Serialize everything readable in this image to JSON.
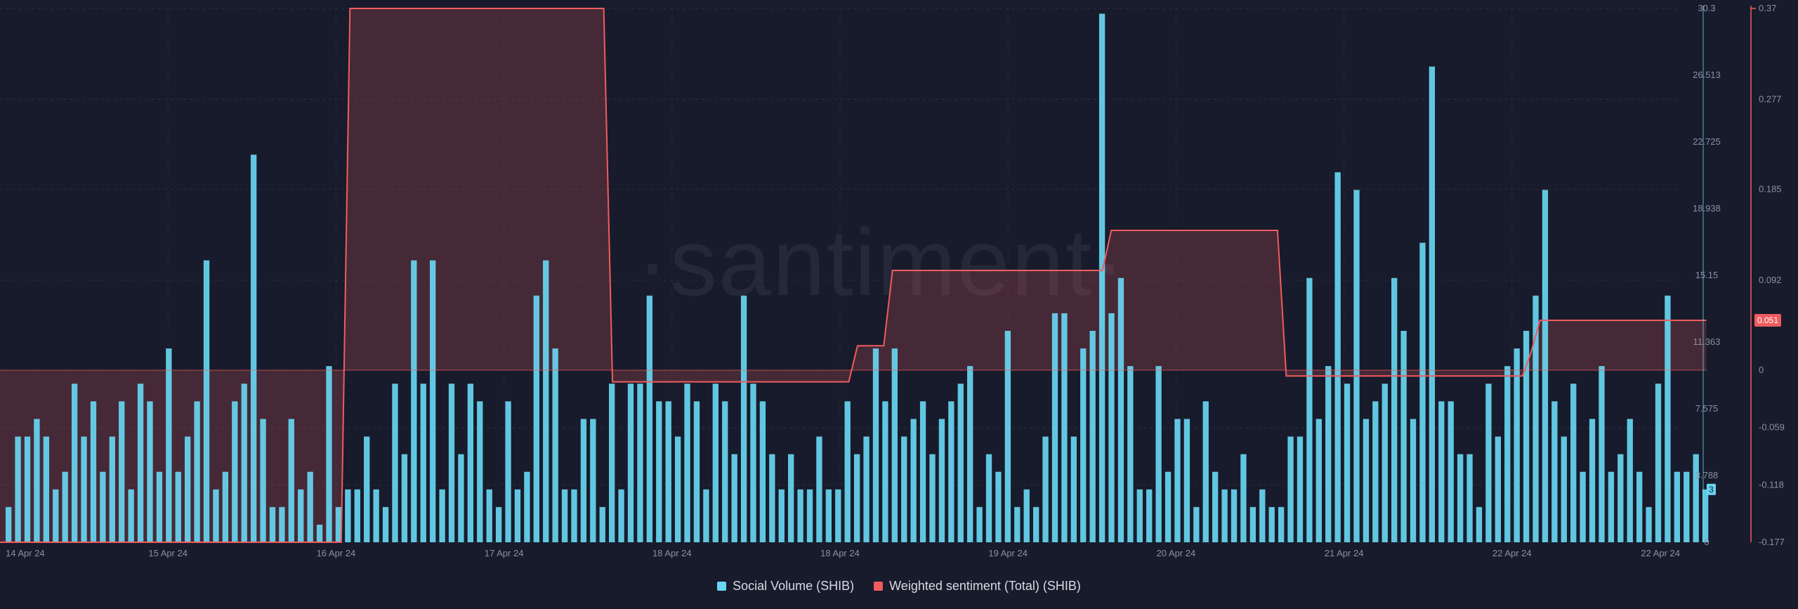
{
  "colors": {
    "background": "#181b2b",
    "volume": "#68d6f1",
    "sentiment": "#ef5c5f",
    "grid": "#2a2e3f",
    "axis_text": "#8b90a3",
    "watermark": "#252838"
  },
  "watermark": "·santiment·",
  "chart_data": {
    "type": "bar",
    "title": "",
    "x_range": [
      "14 Apr 24",
      "22 Apr 24"
    ],
    "x_ticks": [
      "14 Apr 24",
      "15 Apr 24",
      "16 Apr 24",
      "17 Apr 24",
      "18 Apr 24",
      "18 Apr 24",
      "19 Apr 24",
      "20 Apr 24",
      "21 Apr 24",
      "22 Apr 24",
      "22 Apr 24"
    ],
    "y_left": {
      "ticks": [
        "0",
        "3.788",
        "7.575",
        "11.363",
        "15.15",
        "18.938",
        "22.725",
        "26.513",
        "30.3"
      ],
      "range": [
        0,
        30.3
      ]
    },
    "y_right": {
      "ticks": [
        "-0.177",
        "-0.118",
        "-0.059",
        "0",
        "0.092",
        "0.185",
        "0.277",
        "0.37"
      ],
      "range": [
        -0.177,
        0.37
      ],
      "note": "non-uniform scale: 0 is the pivot; negatives and positives are scaled separately"
    },
    "grid": true,
    "legend_position": "bottom-center",
    "series": [
      {
        "name": "Social Volume (SHIB)",
        "type": "bar",
        "axis": "left",
        "color": "#68d6f1",
        "last_value_badge": "3",
        "values": [
          2,
          6,
          6,
          7,
          6,
          3,
          4,
          9,
          6,
          8,
          4,
          6,
          8,
          3,
          9,
          8,
          4,
          11,
          4,
          6,
          8,
          16,
          3,
          4,
          8,
          9,
          22,
          7,
          2,
          2,
          7,
          3,
          4,
          1,
          10,
          2,
          3,
          3,
          6,
          3,
          2,
          9,
          5,
          16,
          9,
          16,
          3,
          9,
          5,
          9,
          8,
          3,
          2,
          8,
          3,
          4,
          14,
          16,
          11,
          3,
          3,
          7,
          7,
          2,
          9,
          3,
          9,
          9,
          14,
          8,
          8,
          6,
          9,
          8,
          3,
          9,
          8,
          5,
          14,
          9,
          8,
          5,
          3,
          5,
          3,
          3,
          6,
          3,
          3,
          8,
          5,
          6,
          11,
          8,
          11,
          6,
          7,
          8,
          5,
          7,
          8,
          9,
          10,
          2,
          5,
          4,
          12,
          2,
          3,
          2,
          6,
          13,
          13,
          6,
          11,
          12,
          30,
          13,
          15,
          10,
          3,
          3,
          10,
          4,
          7,
          7,
          2,
          8,
          4,
          3,
          3,
          5,
          2,
          3,
          2,
          2,
          6,
          6,
          15,
          7,
          10,
          21,
          9,
          20,
          7,
          8,
          9,
          15,
          12,
          7,
          17,
          27,
          8,
          8,
          5,
          5,
          2,
          9,
          6,
          10,
          11,
          12,
          14,
          20,
          8,
          6,
          9,
          4,
          7,
          10,
          4,
          5,
          7,
          4,
          2,
          9,
          14,
          4,
          4,
          5,
          3
        ]
      },
      {
        "name": "Weighted sentiment (Total) (SHIB)",
        "type": "step-area",
        "axis": "right",
        "color": "#ef5c5f",
        "last_value_badge": "0.051",
        "points": [
          {
            "x": "14 Apr 24 00:00",
            "y": -0.177
          },
          {
            "x": "15 Apr 24 15:00",
            "y": -0.177
          },
          {
            "x": "15 Apr 24 16:00",
            "y": 0.37
          },
          {
            "x": "16 Apr 24 21:00",
            "y": 0.37
          },
          {
            "x": "16 Apr 24 22:00",
            "y": -0.012
          },
          {
            "x": "18 Apr 24 01:00",
            "y": -0.012
          },
          {
            "x": "18 Apr 24 02:00",
            "y": 0.025
          },
          {
            "x": "18 Apr 24 05:00",
            "y": 0.025
          },
          {
            "x": "18 Apr 24 06:00",
            "y": 0.102
          },
          {
            "x": "19 Apr 24 06:00",
            "y": 0.102
          },
          {
            "x": "19 Apr 24 07:00",
            "y": 0.143
          },
          {
            "x": "20 Apr 24 02:00",
            "y": 0.143
          },
          {
            "x": "20 Apr 24 03:00",
            "y": -0.006
          },
          {
            "x": "21 Apr 24 06:00",
            "y": -0.006
          },
          {
            "x": "21 Apr 24 07:00",
            "y": 0.019
          },
          {
            "x": "21 Apr 24 08:00",
            "y": 0.051
          },
          {
            "x": "22 Apr 24 03:00",
            "y": 0.051
          }
        ]
      }
    ]
  }
}
